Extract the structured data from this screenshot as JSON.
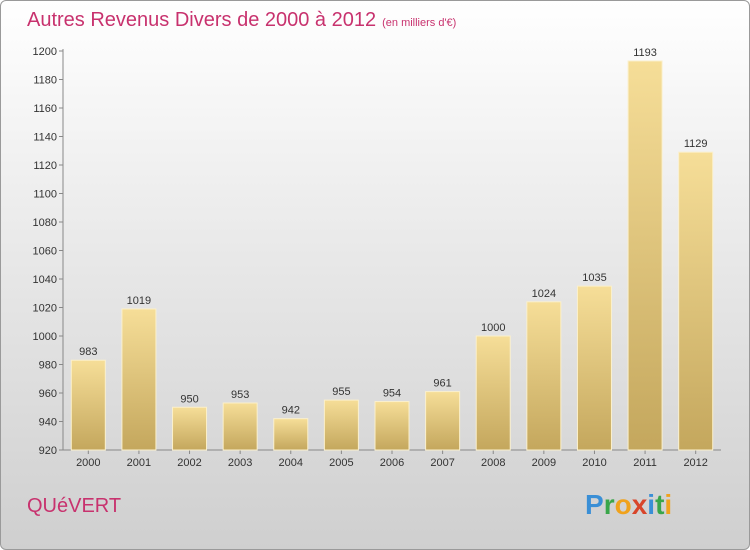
{
  "chart_data": {
    "type": "bar",
    "title": "Autres Revenus Divers de 2000 à 2012",
    "subtitle": "(en milliers d'€)",
    "xlabel": "",
    "ylabel": "",
    "categories": [
      "2000",
      "2001",
      "2002",
      "2003",
      "2004",
      "2005",
      "2006",
      "2007",
      "2008",
      "2009",
      "2010",
      "2011",
      "2012"
    ],
    "values": [
      983,
      1019,
      950,
      953,
      942,
      955,
      954,
      961,
      1000,
      1024,
      1035,
      1193,
      1129
    ],
    "ylim": [
      920,
      1200
    ],
    "yticks": [
      920,
      940,
      960,
      980,
      1000,
      1020,
      1040,
      1060,
      1080,
      1100,
      1120,
      1140,
      1160,
      1180,
      1200
    ],
    "grid": false,
    "legend": "none",
    "bar_color": "#e8cf8a"
  },
  "place_name": "QUéVERT",
  "logo": {
    "text": "Proxiti",
    "letters": [
      {
        "ch": "P",
        "color": "#3a8fd6"
      },
      {
        "ch": "r",
        "color": "#3aa64a"
      },
      {
        "ch": "o",
        "color": "#f0a21c"
      },
      {
        "ch": "x",
        "color": "#d8452a"
      },
      {
        "ch": "i",
        "color": "#3a8fd6"
      },
      {
        "ch": "t",
        "color": "#3aa64a"
      },
      {
        "ch": "i",
        "color": "#f0a21c"
      }
    ]
  },
  "colors": {
    "accent": "#c8326e"
  }
}
